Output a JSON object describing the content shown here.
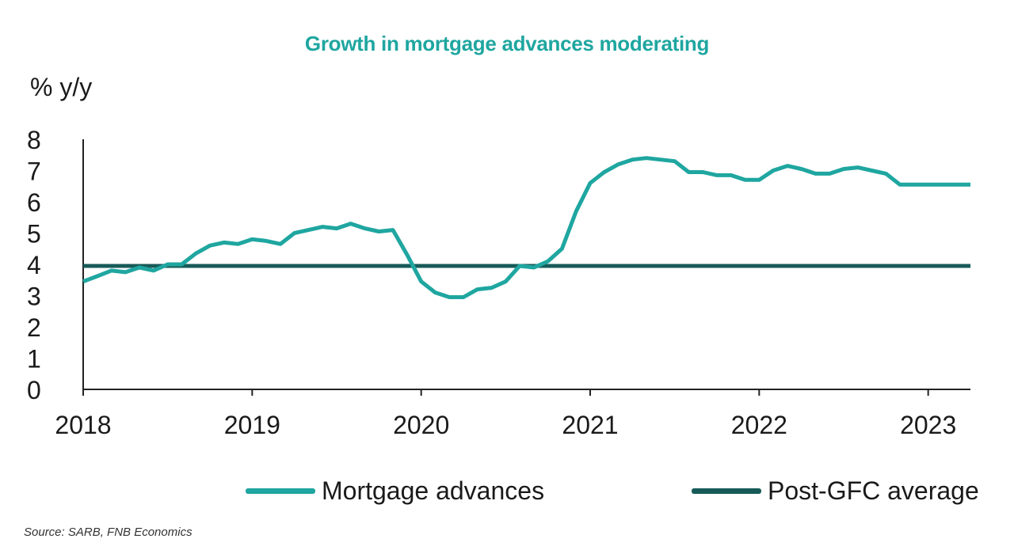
{
  "chart_data": {
    "type": "line",
    "title": "Growth in mortgage advances moderating",
    "ylabel": "% y/y",
    "xlabel": "",
    "ylim": [
      0,
      8
    ],
    "yticks": [
      "0",
      "1",
      "2",
      "3",
      "4",
      "5",
      "6",
      "7",
      "8"
    ],
    "xlim": [
      2018.0,
      2023.25
    ],
    "xticks": [
      {
        "value": 2018,
        "label": "2018"
      },
      {
        "value": 2019,
        "label": "2019"
      },
      {
        "value": 2020,
        "label": "2020"
      },
      {
        "value": 2021,
        "label": "2021"
      },
      {
        "value": 2022,
        "label": "2022"
      },
      {
        "value": 2023,
        "label": "2023"
      }
    ],
    "grid": false,
    "legend_position": "bottom",
    "series": [
      {
        "name": "Mortgage advances",
        "color": "#1fa6a0",
        "x": [
          2018.0,
          2018.083,
          2018.167,
          2018.25,
          2018.333,
          2018.417,
          2018.5,
          2018.583,
          2018.667,
          2018.75,
          2018.833,
          2018.917,
          2019.0,
          2019.083,
          2019.167,
          2019.25,
          2019.333,
          2019.417,
          2019.5,
          2019.583,
          2019.667,
          2019.75,
          2019.833,
          2019.917,
          2020.0,
          2020.083,
          2020.167,
          2020.25,
          2020.333,
          2020.417,
          2020.5,
          2020.583,
          2020.667,
          2020.75,
          2020.833,
          2020.917,
          2021.0,
          2021.083,
          2021.167,
          2021.25,
          2021.333,
          2021.417,
          2021.5,
          2021.583,
          2021.667,
          2021.75,
          2021.833,
          2021.917,
          2022.0,
          2022.083,
          2022.167,
          2022.25,
          2022.333,
          2022.417,
          2022.5,
          2022.583,
          2022.667,
          2022.75,
          2022.833,
          2022.917,
          2023.0,
          2023.083,
          2023.167,
          2023.25
        ],
        "values": [
          3.45,
          3.62,
          3.8,
          3.75,
          3.9,
          3.8,
          4.0,
          4.0,
          4.35,
          4.6,
          4.7,
          4.65,
          4.8,
          4.75,
          4.65,
          5.0,
          5.1,
          5.2,
          5.15,
          5.3,
          5.15,
          5.05,
          5.1,
          4.3,
          3.45,
          3.1,
          2.95,
          2.95,
          3.2,
          3.25,
          3.45,
          3.95,
          3.9,
          4.1,
          4.5,
          5.7,
          6.6,
          6.95,
          7.2,
          7.35,
          7.4,
          7.35,
          7.3,
          6.95,
          6.95,
          6.85,
          6.85,
          6.7,
          6.7,
          7.0,
          7.15,
          7.05,
          6.9,
          6.9,
          7.05,
          7.1,
          7.0,
          6.9,
          6.55,
          6.55,
          6.55,
          6.55,
          6.55,
          6.55
        ]
      },
      {
        "name": "Post-GFC average",
        "color": "#175b59",
        "x": [
          2018.0,
          2023.25
        ],
        "values": [
          3.95,
          3.95
        ]
      }
    ]
  },
  "legend": {
    "items": [
      {
        "label": "Mortgage advances",
        "color": "#1fa6a0"
      },
      {
        "label": "Post-GFC average",
        "color": "#175b59"
      }
    ]
  },
  "source": "Source: SARB, FNB Economics"
}
